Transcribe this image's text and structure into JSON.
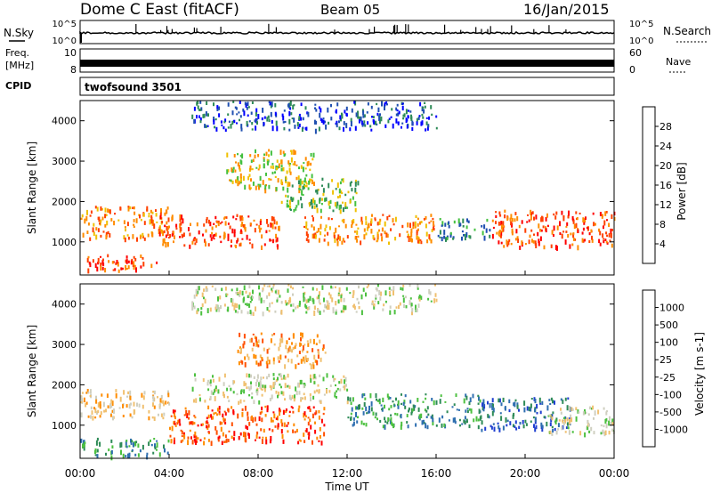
{
  "header": {
    "station": "Dome C East (fitACF)",
    "beam": "Beam 05",
    "date": "16/Jan/2015"
  },
  "top_panels": {
    "nsky_label": "N.Sky",
    "nsky_ticks": [
      "10^5",
      "10^0"
    ],
    "nsky_right_ticks": [
      "10^5",
      "10^0"
    ],
    "nsearch_label": "N.Search",
    "freq_label": "Freq.",
    "freq_unit": "[MHz]",
    "freq_ticks": [
      "10",
      "8"
    ],
    "nave_label": "Nave",
    "nave_ticks": [
      "60",
      "0"
    ],
    "cpid_label": "CPID",
    "cpid_value": "twofsound 3501"
  },
  "chart_data": [
    {
      "type": "heatmap",
      "name": "power-panel",
      "ylabel": "Slant Range [km]",
      "xlabel": "",
      "ylim": [
        180,
        4500
      ],
      "xlim_hours": [
        0,
        24
      ],
      "yticks": [
        "4000",
        "3000",
        "2000",
        "1000"
      ],
      "colorbar": {
        "label": "Power [dB]",
        "ticks": [
          "28",
          "24",
          "20",
          "16",
          "12",
          "8",
          "4"
        ],
        "colors": [
          "#0000ff",
          "#1f4fb0",
          "#2e8b57",
          "#44c040",
          "#f0c000",
          "#ff8c00",
          "#ff4000",
          "#ff0000"
        ]
      },
      "bands": [
        {
          "t0": 0.0,
          "t1": 3.5,
          "r0": 300,
          "r1": 700,
          "level": 6
        },
        {
          "t0": 0.0,
          "t1": 4.0,
          "r0": 1100,
          "r1": 1900,
          "level": 5
        },
        {
          "t0": 3.5,
          "t1": 9.0,
          "r0": 900,
          "r1": 1700,
          "level": 6
        },
        {
          "t0": 6.5,
          "t1": 10.5,
          "r0": 2300,
          "r1": 3300,
          "level": 4
        },
        {
          "t0": 9.0,
          "t1": 12.5,
          "r0": 1800,
          "r1": 2600,
          "level": 3
        },
        {
          "t0": 10.0,
          "t1": 16.0,
          "r0": 1000,
          "r1": 1700,
          "level": 5
        },
        {
          "t0": 16.0,
          "t1": 18.5,
          "r0": 1100,
          "r1": 1600,
          "level": 2
        },
        {
          "t0": 18.5,
          "t1": 24.0,
          "r0": 900,
          "r1": 1800,
          "level": 6
        },
        {
          "t0": 5.0,
          "t1": 16.0,
          "r0": 3800,
          "r1": 4500,
          "level": 1
        }
      ]
    },
    {
      "type": "heatmap",
      "name": "velocity-panel",
      "ylabel": "Slant Range [km]",
      "xlabel": "Time UT",
      "ylim": [
        180,
        4500
      ],
      "xlim_hours": [
        0,
        24
      ],
      "yticks": [
        "4000",
        "3000",
        "2000",
        "1000"
      ],
      "xticks": [
        "00:00",
        "04:00",
        "08:00",
        "12:00",
        "16:00",
        "20:00",
        "00:00"
      ],
      "colorbar": {
        "label": "Velocity [m s-1]",
        "ticks": [
          "1000",
          "500",
          "100",
          "25",
          "-25",
          "-100",
          "-500",
          "-1000"
        ],
        "colors": [
          "#1f3fd0",
          "#2f6fb0",
          "#2e8b57",
          "#4cc040",
          "#cfcfc0",
          "#f0c070",
          "#ff8c00",
          "#ff5000",
          "#ff0000"
        ]
      },
      "bands": [
        {
          "t0": 0.0,
          "t1": 4.0,
          "r0": 250,
          "r1": 700,
          "level": 2
        },
        {
          "t0": 0.0,
          "t1": 4.0,
          "r0": 1200,
          "r1": 1900,
          "level": 5
        },
        {
          "t0": 4.0,
          "t1": 11.0,
          "r0": 600,
          "r1": 1500,
          "level": 7
        },
        {
          "t0": 5.0,
          "t1": 12.0,
          "r0": 1600,
          "r1": 2300,
          "level": 4
        },
        {
          "t0": 7.0,
          "t1": 11.0,
          "r0": 2500,
          "r1": 3300,
          "level": 6
        },
        {
          "t0": 12.0,
          "t1": 18.0,
          "r0": 1000,
          "r1": 1800,
          "level": 2
        },
        {
          "t0": 18.0,
          "t1": 22.0,
          "r0": 900,
          "r1": 1700,
          "level": 1
        },
        {
          "t0": 21.0,
          "t1": 24.0,
          "r0": 800,
          "r1": 1500,
          "level": 4
        },
        {
          "t0": 5.0,
          "t1": 16.0,
          "r0": 3800,
          "r1": 4500,
          "level": 4
        }
      ]
    }
  ]
}
